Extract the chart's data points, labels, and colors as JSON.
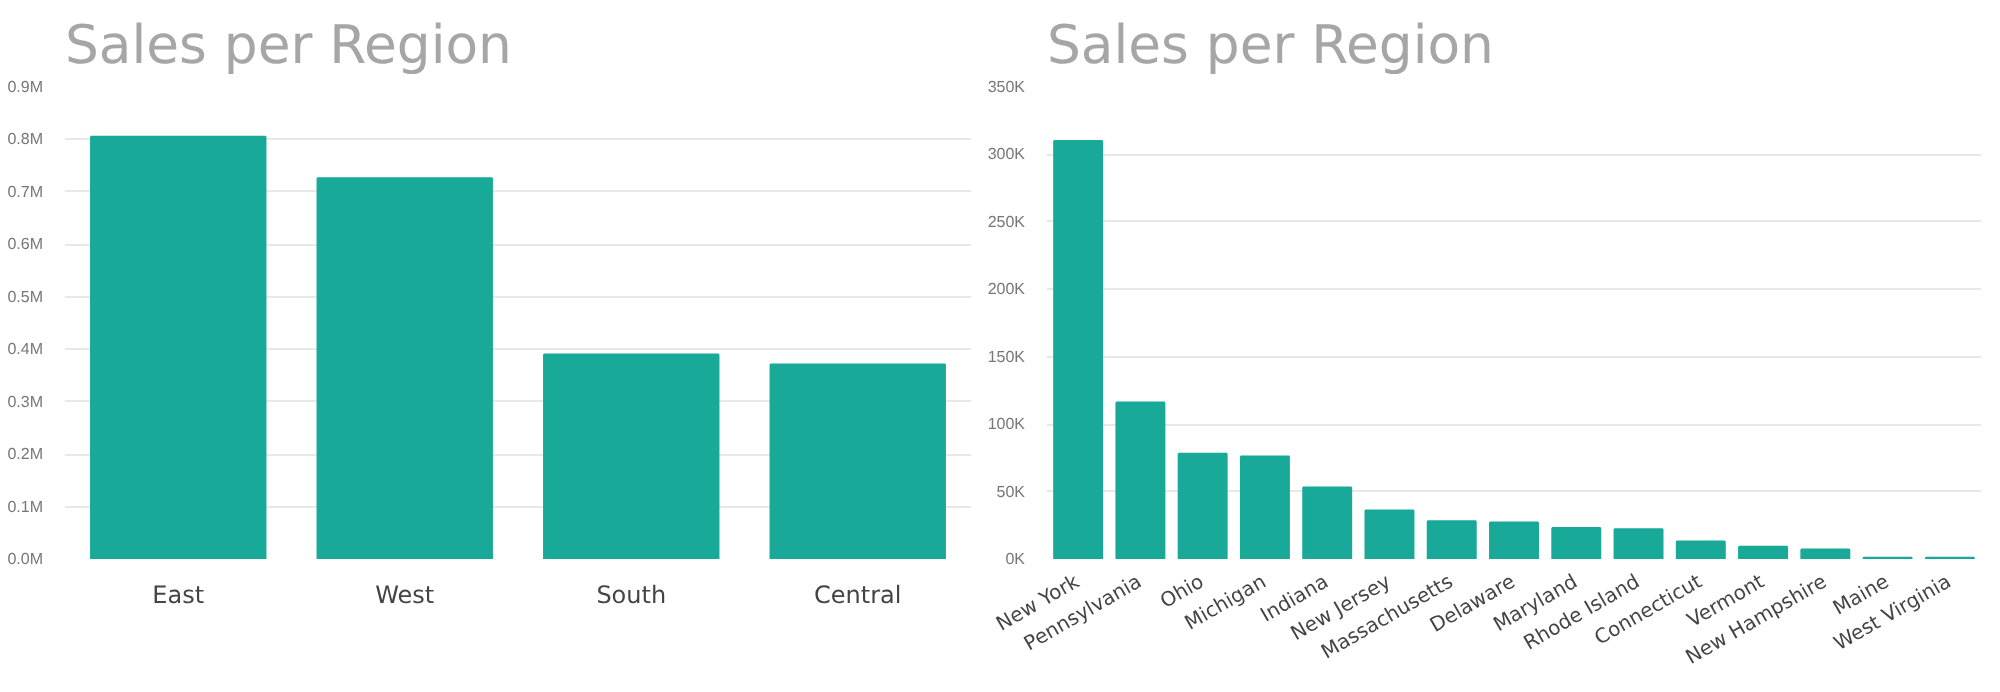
{
  "chart_data": [
    {
      "type": "bar",
      "title": "Sales per Region",
      "categories": [
        "East",
        "West",
        "South",
        "Central"
      ],
      "color": "#18a999",
      "values": [
        805000,
        726000,
        390000,
        371000
      ],
      "ylim": [
        0,
        900000
      ],
      "yticks": [
        {
          "value": 0,
          "label": "0.0M"
        },
        {
          "value": 100000,
          "label": "0.1M"
        },
        {
          "value": 200000,
          "label": "0.2M"
        },
        {
          "value": 300000,
          "label": "0.3M"
        },
        {
          "value": 400000,
          "label": "0.4M"
        },
        {
          "value": 500000,
          "label": "0.5M"
        },
        {
          "value": 600000,
          "label": "0.6M"
        },
        {
          "value": 700000,
          "label": "0.7M"
        },
        {
          "value": 800000,
          "label": "0.8M"
        },
        {
          "value": 900000,
          "label": "0.9M"
        }
      ],
      "grid": "y"
    },
    {
      "type": "bar",
      "title": "Sales per Region",
      "categories": [
        "New York",
        "Pennsylvania",
        "Ohio",
        "Michigan",
        "Indiana",
        "New Jersey",
        "Massachusetts",
        "Delaware",
        "Maryland",
        "Rhode Island",
        "Connecticut",
        "Vermont",
        "New Hampshire",
        "Maine",
        "West Virginia"
      ],
      "color": "#18a999",
      "values": [
        310000,
        116000,
        78000,
        76000,
        53000,
        36000,
        28000,
        27000,
        23000,
        22000,
        13000,
        9000,
        7000,
        1000,
        1000
      ],
      "ylim": [
        0,
        350000
      ],
      "yticks": [
        {
          "value": 0,
          "label": "0K"
        },
        {
          "value": 50000,
          "label": "50K"
        },
        {
          "value": 100000,
          "label": "100K"
        },
        {
          "value": 150000,
          "label": "150K"
        },
        {
          "value": 200000,
          "label": "200K"
        },
        {
          "value": 250000,
          "label": "250K"
        },
        {
          "value": 300000,
          "label": "300K"
        },
        {
          "value": 350000,
          "label": "350K"
        }
      ],
      "grid": "y"
    }
  ]
}
